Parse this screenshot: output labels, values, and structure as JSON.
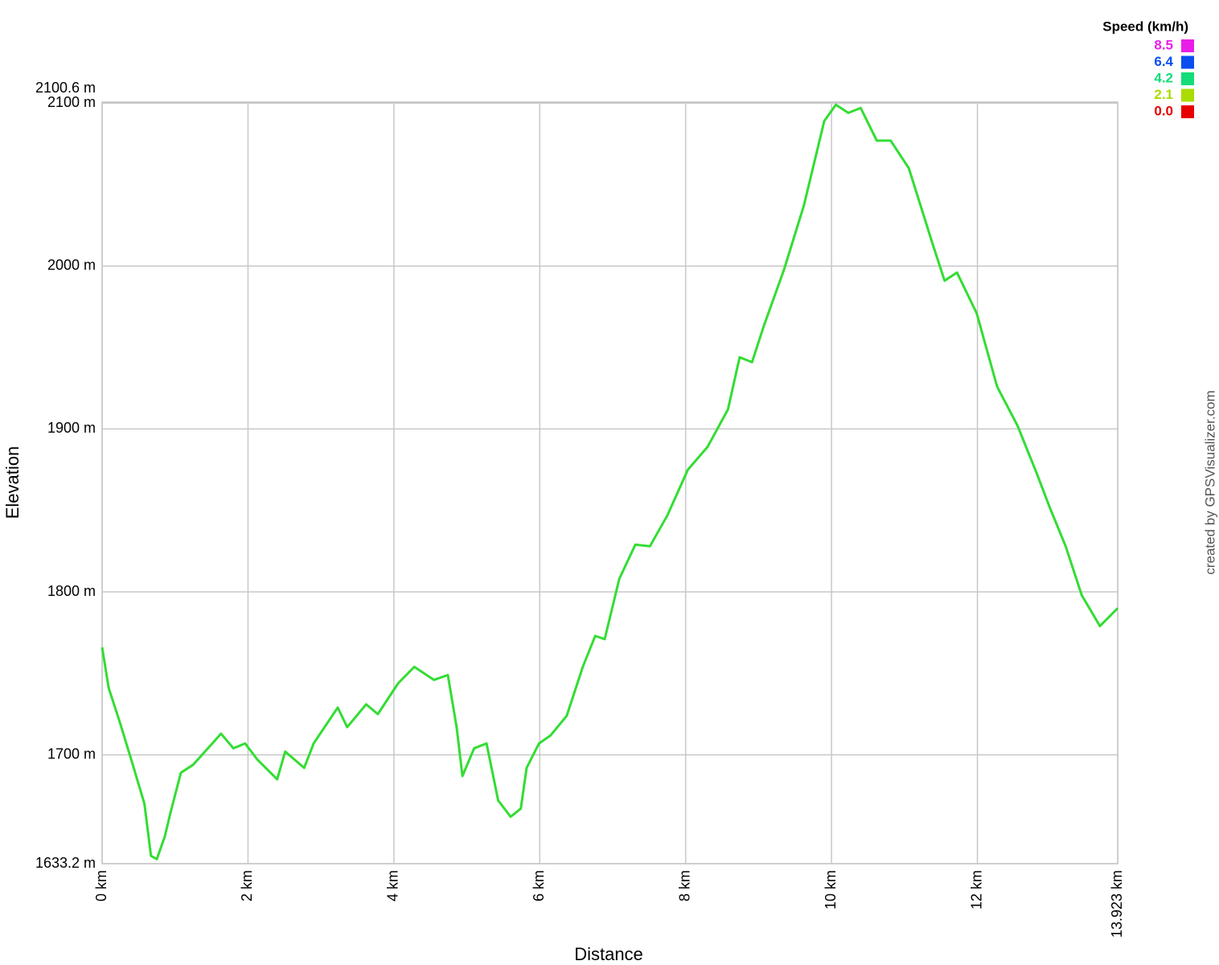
{
  "chart_data": {
    "type": "line",
    "x_label": "Distance",
    "y_label": "Elevation",
    "credit": "created by GPSVisualizer.com",
    "x": [
      0,
      0.09,
      0.25,
      0.42,
      0.58,
      0.67,
      0.75,
      0.86,
      0.94,
      1.08,
      1.25,
      1.41,
      1.63,
      1.8,
      1.96,
      2.13,
      2.4,
      2.51,
      2.77,
      2.9,
      3.23,
      3.36,
      3.62,
      3.78,
      4.06,
      4.28,
      4.55,
      4.74,
      4.86,
      4.94,
      5.1,
      5.27,
      5.43,
      5.6,
      5.74,
      5.82,
      5.99,
      6.15,
      6.37,
      6.59,
      6.76,
      6.89,
      7.09,
      7.31,
      7.51,
      7.75,
      8.03,
      8.3,
      8.58,
      8.74,
      8.91,
      9.07,
      9.35,
      9.62,
      9.9,
      10.06,
      10.23,
      10.4,
      10.62,
      10.81,
      11.06,
      11.39,
      11.55,
      11.72,
      11.99,
      12.27,
      12.55,
      12.82,
      12.99,
      13.21,
      13.43,
      13.68,
      13.923
    ],
    "series": [
      {
        "color": "#33dd33",
        "values": [
          1766,
          1741,
          1719,
          1694,
          1670,
          1638,
          1636,
          1650,
          1665,
          1689,
          1694,
          1702,
          1713,
          1704,
          1707,
          1697,
          1685,
          1702,
          1692,
          1707,
          1729,
          1717,
          1731,
          1725,
          1744,
          1754,
          1746,
          1749,
          1717,
          1687,
          1704,
          1707,
          1672,
          1662,
          1667,
          1692,
          1707,
          1712,
          1724,
          1754,
          1773,
          1771,
          1808,
          1829,
          1828,
          1847,
          1875,
          1889,
          1912,
          1944,
          1941,
          1963,
          1998,
          2037,
          2089,
          2099,
          2094,
          2097,
          2077,
          2077,
          2060,
          2013,
          1991,
          1996,
          1971,
          1926,
          1902,
          1872,
          1852,
          1828,
          1798,
          1779,
          1790
        ]
      }
    ],
    "xlim": [
      0,
      13.923
    ],
    "xticks": [
      {
        "value": 0,
        "label": "0 km"
      },
      {
        "value": 2,
        "label": "2 km"
      },
      {
        "value": 4,
        "label": "4 km"
      },
      {
        "value": 6,
        "label": "6 km"
      },
      {
        "value": 8,
        "label": "8 km"
      },
      {
        "value": 10,
        "label": "10 km"
      },
      {
        "value": 12,
        "label": "12 km"
      },
      {
        "value": 13.923,
        "label": "13.923 km"
      }
    ],
    "ylim": [
      1633.2,
      2100.6
    ],
    "yticks": [
      {
        "value": 1633.2,
        "label": "1633.2 m"
      },
      {
        "value": 1700,
        "label": "1700 m"
      },
      {
        "value": 1800,
        "label": "1800 m"
      },
      {
        "value": 1900,
        "label": "1900 m"
      },
      {
        "value": 2000,
        "label": "2000 m"
      },
      {
        "value": 2100,
        "label": "2100 m"
      },
      {
        "value": 2100.6,
        "label": "2100.6 m"
      }
    ],
    "grid": true,
    "legend_position": "top-right",
    "color_scale": {
      "title": "Speed (km/h)",
      "stops": [
        {
          "value": 8.5,
          "color": "#e81ee8"
        },
        {
          "value": 6.4,
          "color": "#0a4ef0"
        },
        {
          "value": 4.2,
          "color": "#14dc78"
        },
        {
          "value": 2.1,
          "color": "#aadc00"
        },
        {
          "value": 0,
          "label": "0.0",
          "color": "#e60000"
        }
      ]
    }
  }
}
